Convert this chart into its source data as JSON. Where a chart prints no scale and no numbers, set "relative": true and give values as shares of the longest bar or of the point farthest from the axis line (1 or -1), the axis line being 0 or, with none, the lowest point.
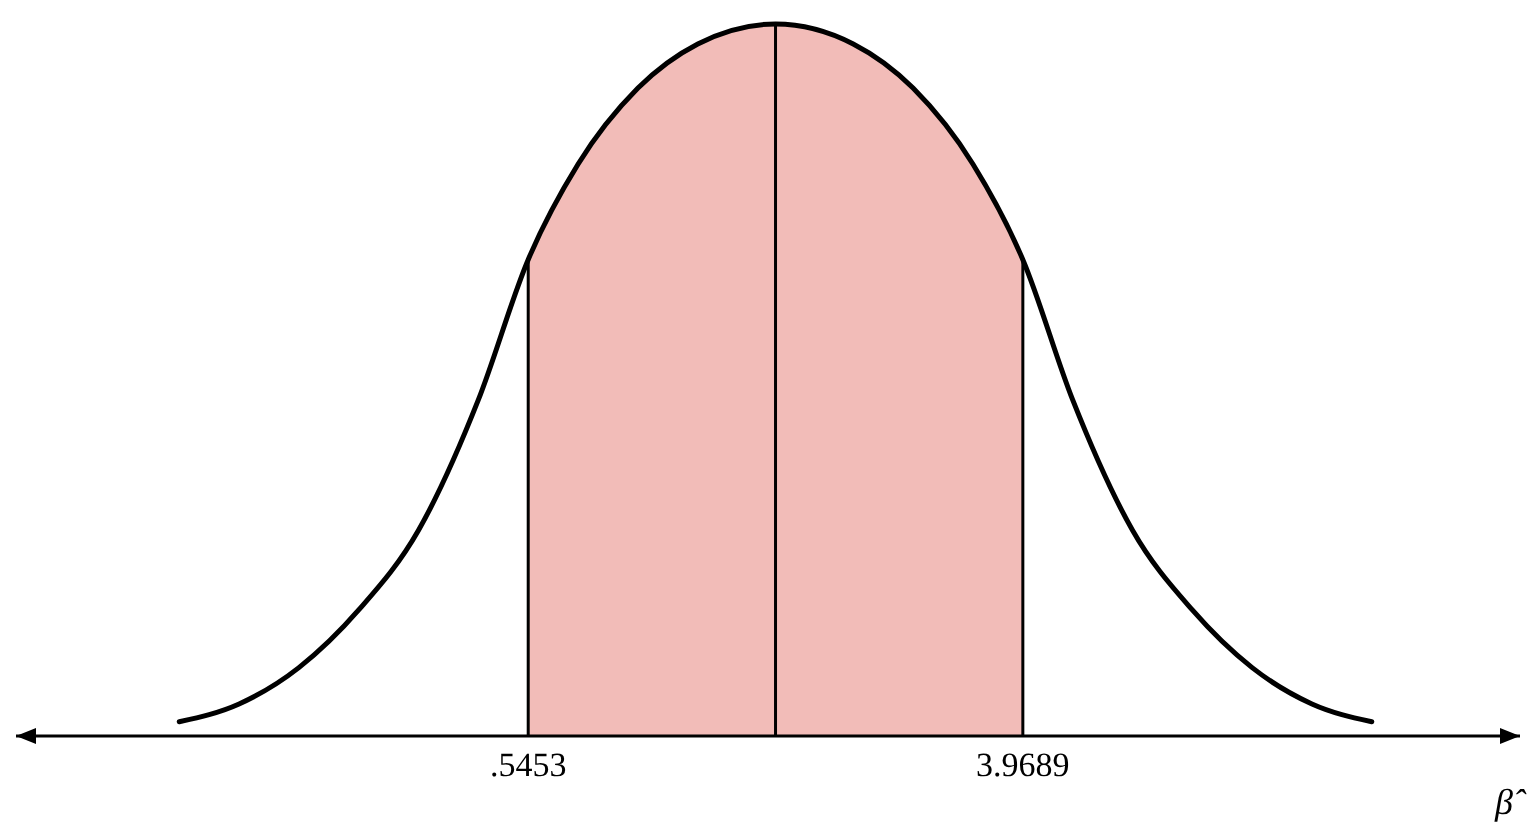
{
  "chart_data": {
    "type": "line",
    "relative": true,
    "xlabel": "β̂",
    "xlim": [
      -3.0,
      7.41
    ],
    "xticks": [
      {
        "value": 0.5453,
        "label": ".5453"
      },
      {
        "value": 3.9689,
        "label": "3.9689"
      }
    ],
    "x": [
      -1.87,
      -1.456,
      -1.042,
      -0.628,
      -0.214,
      0.2,
      0.545,
      0.89,
      1.305,
      1.719,
      2.257,
      2.795,
      3.209,
      3.624,
      3.969,
      4.314,
      4.728,
      5.142,
      5.556,
      5.97,
      6.384
    ],
    "series": [
      {
        "color": "#000000",
        "values": [
          0.02,
          0.045,
          0.096,
          0.177,
          0.289,
          0.472,
          0.669,
          0.803,
          0.91,
          0.972,
          1.0,
          0.972,
          0.91,
          0.803,
          0.669,
          0.472,
          0.289,
          0.177,
          0.096,
          0.045,
          0.02
        ]
      }
    ],
    "bands": [
      {
        "axis": "x",
        "from": 0.5453,
        "to": 3.9689,
        "color": "#f2bcb8"
      }
    ],
    "ref_lines": [
      {
        "axis": "x",
        "value": 0.5453
      },
      {
        "axis": "x",
        "value": 2.2571
      },
      {
        "axis": "x",
        "value": 3.9689
      }
    ],
    "marker": "none",
    "line_style": "solid"
  }
}
